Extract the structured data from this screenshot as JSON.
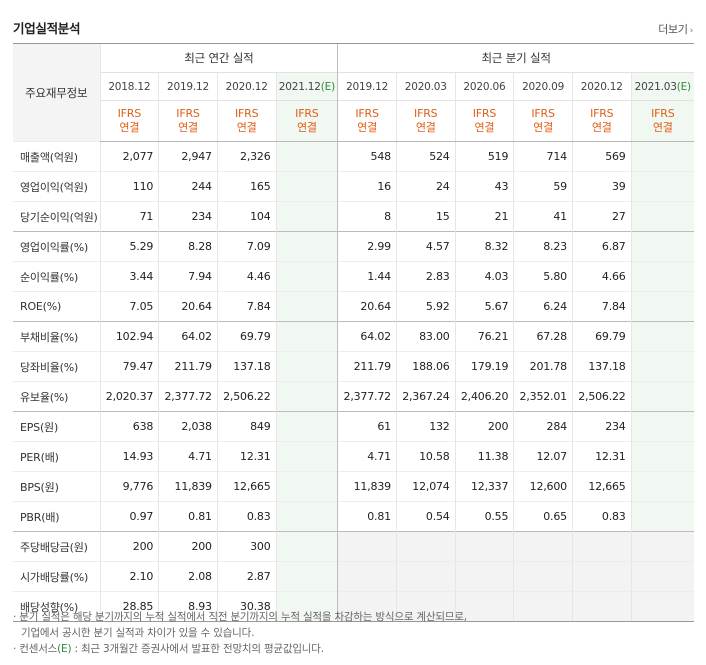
{
  "header": {
    "title": "기업실적분석",
    "more_label": "더보기"
  },
  "table": {
    "row_header_label": "주요재무정보",
    "group_annual": "최근 연간 실적",
    "group_quarterly": "최근 분기 실적",
    "annual_periods": [
      "2018.12",
      "2019.12",
      "2020.12"
    ],
    "annual_estimate_period": "2021.12",
    "quarter_periods": [
      "2019.12",
      "2020.03",
      "2020.06",
      "2020.09",
      "2020.12"
    ],
    "quarter_estimate_period": "2021.03",
    "estimate_mark": "(E)",
    "basis_line1": "IFRS",
    "basis_line2": "연결",
    "rows": [
      {
        "label": "매출액(억원)",
        "annual": [
          "2,077",
          "2,947",
          "2,326",
          ""
        ],
        "quarter": [
          "548",
          "524",
          "519",
          "714",
          "569",
          ""
        ]
      },
      {
        "label": "영업이익(억원)",
        "annual": [
          "110",
          "244",
          "165",
          ""
        ],
        "quarter": [
          "16",
          "24",
          "43",
          "59",
          "39",
          ""
        ]
      },
      {
        "label": "당기순이익(억원)",
        "annual": [
          "71",
          "234",
          "104",
          ""
        ],
        "quarter": [
          "8",
          "15",
          "21",
          "41",
          "27",
          ""
        ]
      },
      {
        "label": "영업이익률(%)",
        "annual": [
          "5.29",
          "8.28",
          "7.09",
          ""
        ],
        "quarter": [
          "2.99",
          "4.57",
          "8.32",
          "8.23",
          "6.87",
          ""
        ]
      },
      {
        "label": "순이익률(%)",
        "annual": [
          "3.44",
          "7.94",
          "4.46",
          ""
        ],
        "quarter": [
          "1.44",
          "2.83",
          "4.03",
          "5.80",
          "4.66",
          ""
        ]
      },
      {
        "label": "ROE(%)",
        "annual": [
          "7.05",
          "20.64",
          "7.84",
          ""
        ],
        "quarter": [
          "20.64",
          "5.92",
          "5.67",
          "6.24",
          "7.84",
          ""
        ]
      },
      {
        "label": "부채비율(%)",
        "annual": [
          "102.94",
          "64.02",
          "69.79",
          ""
        ],
        "quarter": [
          "64.02",
          "83.00",
          "76.21",
          "67.28",
          "69.79",
          ""
        ]
      },
      {
        "label": "당좌비율(%)",
        "annual": [
          "79.47",
          "211.79",
          "137.18",
          ""
        ],
        "quarter": [
          "211.79",
          "188.06",
          "179.19",
          "201.78",
          "137.18",
          ""
        ]
      },
      {
        "label": "유보율(%)",
        "annual": [
          "2,020.37",
          "2,377.72",
          "2,506.22",
          ""
        ],
        "quarter": [
          "2,377.72",
          "2,367.24",
          "2,406.20",
          "2,352.01",
          "2,506.22",
          ""
        ]
      },
      {
        "label": "EPS(원)",
        "annual": [
          "638",
          "2,038",
          "849",
          ""
        ],
        "quarter": [
          "61",
          "132",
          "200",
          "284",
          "234",
          ""
        ]
      },
      {
        "label": "PER(배)",
        "annual": [
          "14.93",
          "4.71",
          "12.31",
          ""
        ],
        "quarter": [
          "4.71",
          "10.58",
          "11.38",
          "12.07",
          "12.31",
          ""
        ]
      },
      {
        "label": "BPS(원)",
        "annual": [
          "9,776",
          "11,839",
          "12,665",
          ""
        ],
        "quarter": [
          "11,839",
          "12,074",
          "12,337",
          "12,600",
          "12,665",
          ""
        ]
      },
      {
        "label": "PBR(배)",
        "annual": [
          "0.97",
          "0.81",
          "0.83",
          ""
        ],
        "quarter": [
          "0.81",
          "0.54",
          "0.55",
          "0.65",
          "0.83",
          ""
        ]
      },
      {
        "label": "주당배당금(원)",
        "annual": [
          "200",
          "200",
          "300",
          ""
        ],
        "quarter": [
          "",
          "",
          "",
          "",
          "",
          ""
        ]
      },
      {
        "label": "시가배당률(%)",
        "annual": [
          "2.10",
          "2.08",
          "2.87",
          ""
        ],
        "quarter": [
          "",
          "",
          "",
          "",
          "",
          ""
        ]
      },
      {
        "label": "배당성향(%)",
        "annual": [
          "28.85",
          "8.93",
          "30.38",
          ""
        ],
        "quarter": [
          "",
          "",
          "",
          "",
          "",
          ""
        ]
      }
    ]
  },
  "notes": {
    "line1": "분기 실적은 해당 분기까지의 누적 실적에서 직전 분기까지의 누적 실적을 차감하는 방식으로 계산되므로,",
    "line2": "기업에서 공시한 분기 실적과 차이가 있을 수 있습니다.",
    "line3_prefix": "컨센서스",
    "line3_mark": "(E)",
    "line3_suffix": " : 최근 3개월간 증권사에서 발표한 전망치의 평균값입니다.",
    "bullet": "·"
  },
  "colors": {
    "basis_orange": "#e05d16",
    "estimate_green": "#2e8b3e",
    "estimate_bg": "#f1f7f1",
    "dividend_quarter_bg": "#f3f3f3"
  }
}
